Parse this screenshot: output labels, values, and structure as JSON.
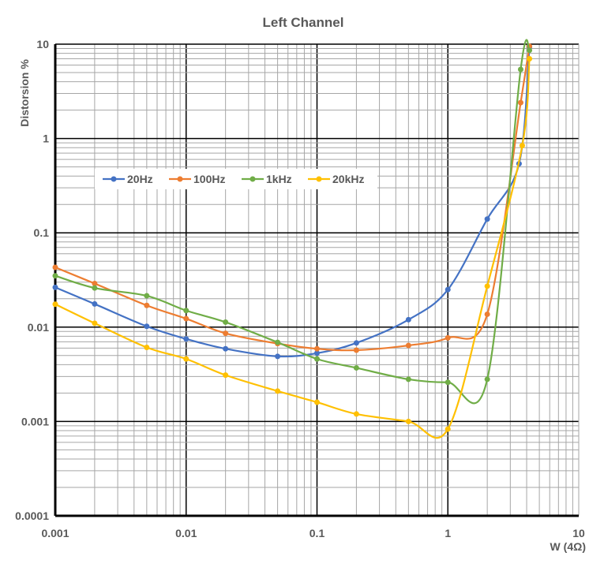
{
  "chart_data": {
    "type": "line",
    "title": "Left Channel",
    "xlabel": "W (4Ω)",
    "ylabel": "Distorsion %",
    "xscale": "log",
    "yscale": "log",
    "xlim": [
      0.001,
      10
    ],
    "ylim": [
      0.0001,
      10
    ],
    "xticks": [
      "0.001",
      "0.01",
      "0.1",
      "1",
      "10"
    ],
    "yticks": [
      "0.0001",
      "0.001",
      "0.01",
      "0.1",
      "1",
      "10"
    ],
    "grid": true,
    "legend_position": "upper-left-inside",
    "series": [
      {
        "name": "20Hz",
        "color": "#4472C4",
        "x": [
          0.001,
          0.002,
          0.005,
          0.01,
          0.02,
          0.05,
          0.1,
          0.2,
          0.5,
          1,
          2,
          3.5,
          4.2
        ],
        "y": [
          0.0264,
          0.0176,
          0.0102,
          0.0075,
          0.0059,
          0.0049,
          0.0053,
          0.0068,
          0.012,
          0.025,
          0.14,
          0.54,
          9.3
        ]
      },
      {
        "name": "100Hz",
        "color": "#ED7D31",
        "x": [
          0.001,
          0.002,
          0.005,
          0.01,
          0.02,
          0.05,
          0.1,
          0.2,
          0.5,
          1,
          2,
          3.6,
          4.2
        ],
        "y": [
          0.043,
          0.029,
          0.017,
          0.0123,
          0.0086,
          0.0067,
          0.0059,
          0.0057,
          0.0064,
          0.0077,
          0.0137,
          2.4,
          9.5
        ]
      },
      {
        "name": "1kHz",
        "color": "#70AD47",
        "x": [
          0.001,
          0.002,
          0.005,
          0.01,
          0.02,
          0.05,
          0.1,
          0.2,
          0.5,
          1,
          2,
          3.6,
          4.2
        ],
        "y": [
          0.035,
          0.026,
          0.0215,
          0.015,
          0.0113,
          0.0069,
          0.0046,
          0.0037,
          0.0028,
          0.0026,
          0.0028,
          5.4,
          8.6
        ]
      },
      {
        "name": "20kHz",
        "color": "#FFC000",
        "x": [
          0.001,
          0.002,
          0.005,
          0.01,
          0.02,
          0.05,
          0.1,
          0.2,
          0.5,
          1,
          2,
          3.7,
          4.2
        ],
        "y": [
          0.0175,
          0.011,
          0.0061,
          0.0046,
          0.0031,
          0.0021,
          0.0016,
          0.0012,
          0.001,
          0.00083,
          0.0272,
          0.84,
          7.0
        ]
      }
    ]
  }
}
